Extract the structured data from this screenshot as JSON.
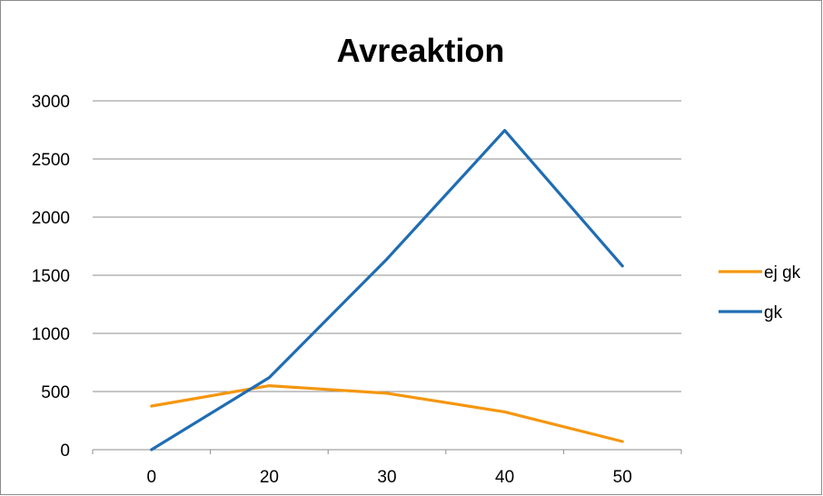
{
  "chart_data": {
    "type": "line",
    "title": "Avreaktion",
    "xlabel": "",
    "ylabel": "",
    "categories": [
      "0",
      "20",
      "30",
      "40",
      "50"
    ],
    "ylim": [
      0,
      3000
    ],
    "yticks": [
      0,
      500,
      1000,
      1500,
      2000,
      2500,
      3000
    ],
    "grid": true,
    "legend_position": "right",
    "series": [
      {
        "name": "ej gk",
        "color": "#F5960F",
        "values": [
          375,
          550,
          485,
          325,
          70
        ]
      },
      {
        "name": "gk",
        "color": "#1F6DB3",
        "values": [
          0,
          620,
          1640,
          2745,
          1580
        ]
      }
    ]
  },
  "colors": {
    "gridline": "#8c8c8c",
    "axis": "#8c8c8c",
    "border": "#8c8c8c"
  }
}
